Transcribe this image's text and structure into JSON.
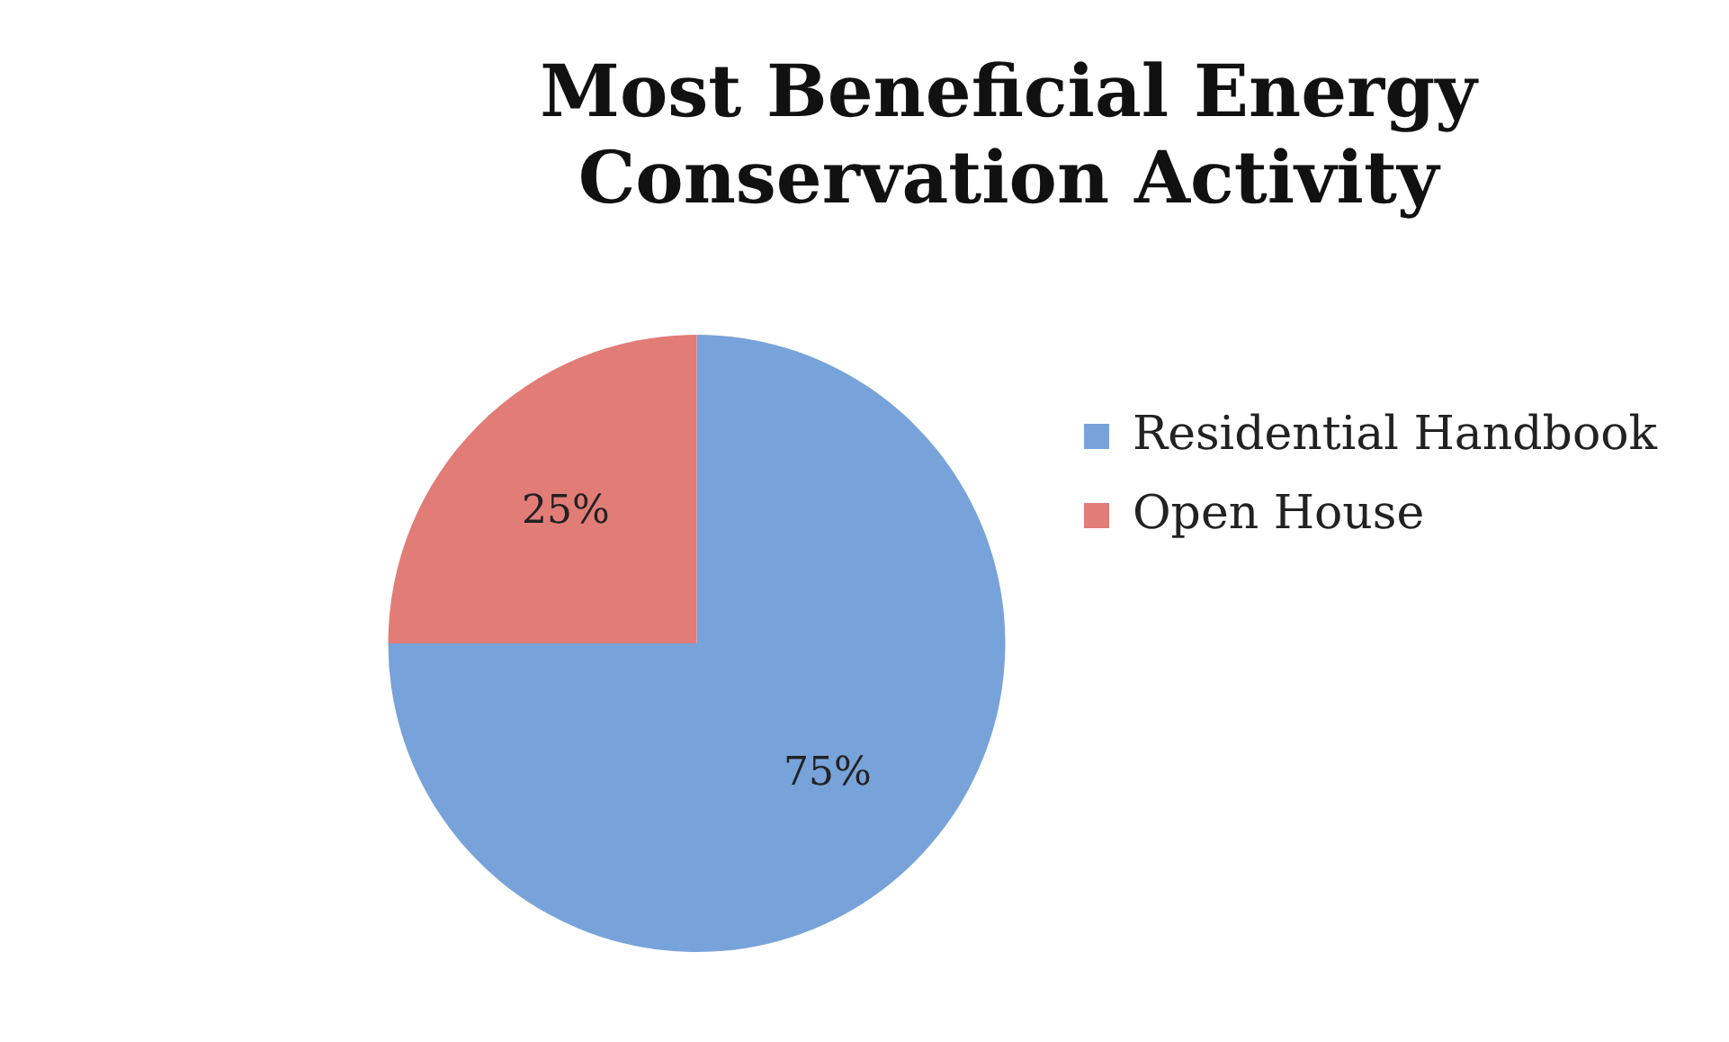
{
  "chart_data": {
    "type": "pie",
    "title": "Most Beneficial Energy Conservation Activity",
    "categories": [
      "Residential Handbook",
      "Open House"
    ],
    "values": [
      75,
      25
    ],
    "colors": [
      "#77a3da",
      "#e27c77"
    ],
    "legend": "right",
    "value_labels": [
      "75%",
      "25%"
    ]
  }
}
